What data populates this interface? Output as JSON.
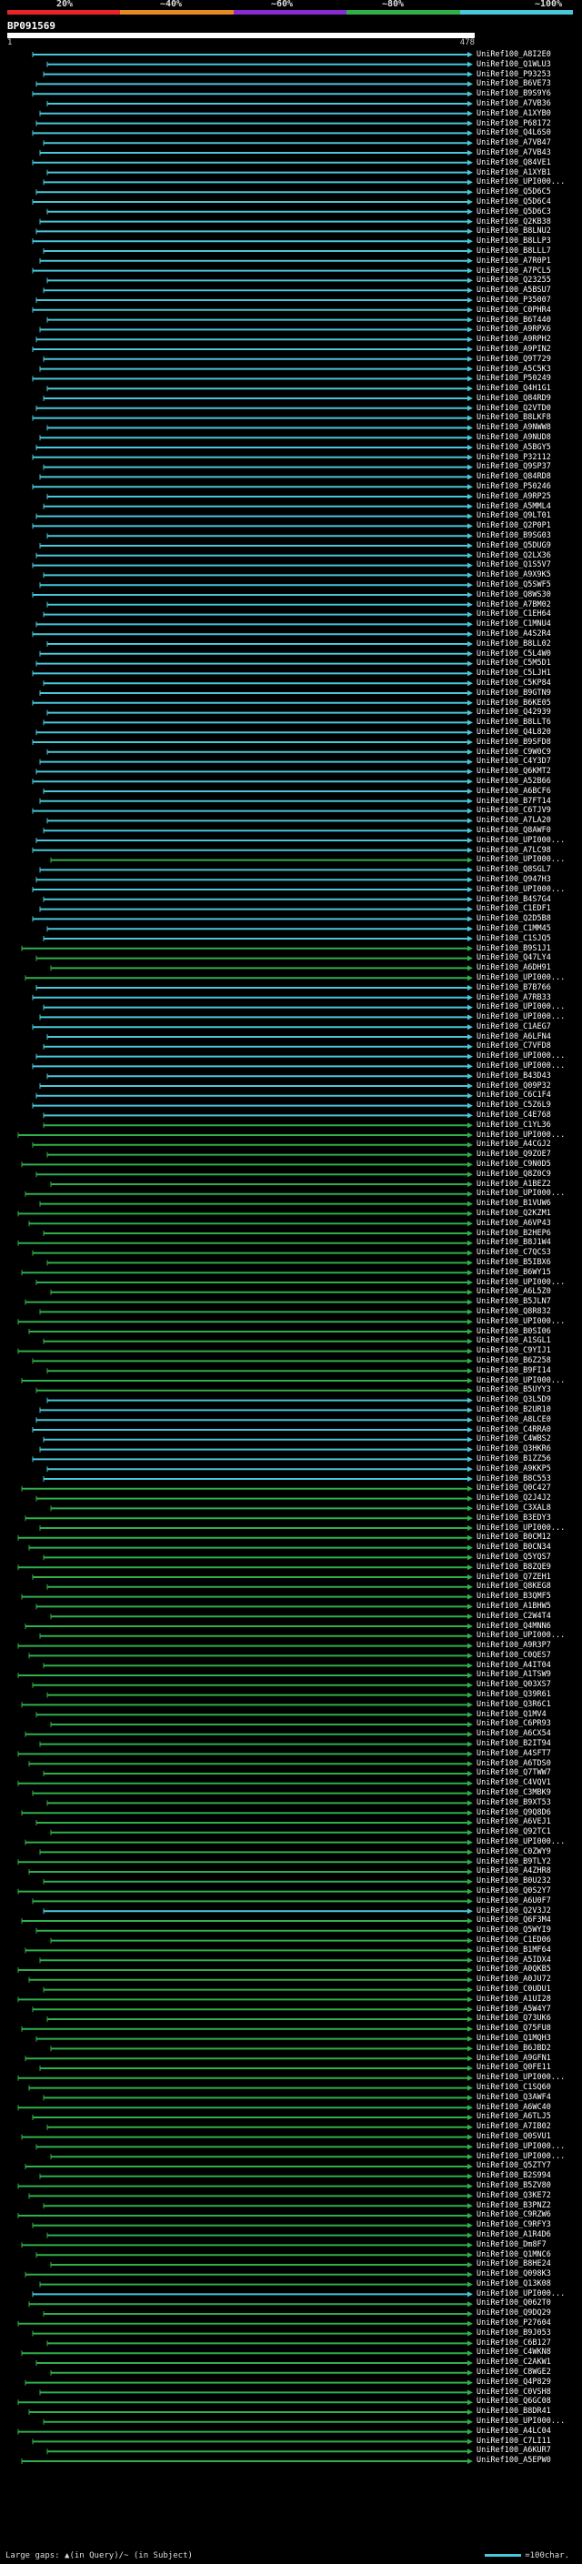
{
  "legend": {
    "percentages": [
      "20%",
      "~40%",
      "~60%",
      "~80%",
      "~100%"
    ],
    "colors": [
      "#e8232a",
      "#e88a22",
      "#8a2bd1",
      "#2fb04a",
      "#48c8d8"
    ]
  },
  "query": {
    "name": "BP091569",
    "start": "1",
    "end": "478"
  },
  "hits": [
    {
      "label": "UniRef100_A8I2E0",
      "color": "#48c8d8"
    },
    {
      "label": "UniRef100_Q1WLU3",
      "color": "#48c8d8"
    },
    {
      "label": "UniRef100_P93253",
      "color": "#48c8d8"
    },
    {
      "label": "UniRef100_B6VE73",
      "color": "#48c8d8"
    },
    {
      "label": "UniRef100_B9S9Y6",
      "color": "#48c8d8"
    },
    {
      "label": "UniRef100_A7VB36",
      "color": "#48c8d8"
    },
    {
      "label": "UniRef100_A1XYB0",
      "color": "#48c8d8"
    },
    {
      "label": "UniRef100_P68172",
      "color": "#48c8d8"
    },
    {
      "label": "UniRef100_Q4L6S0",
      "color": "#48c8d8"
    },
    {
      "label": "UniRef100_A7VB47",
      "color": "#48c8d8"
    },
    {
      "label": "UniRef100_A7VB43",
      "color": "#48c8d8"
    },
    {
      "label": "UniRef100_Q84VE1",
      "color": "#48c8d8"
    },
    {
      "label": "UniRef100_A1XYB1",
      "color": "#48c8d8"
    },
    {
      "label": "UniRef100_UPI000...",
      "color": "#48c8d8"
    },
    {
      "label": "UniRef100_Q5D6C5",
      "color": "#48c8d8"
    },
    {
      "label": "UniRef100_Q5D6C4",
      "color": "#48c8d8"
    },
    {
      "label": "UniRef100_Q5D6C3",
      "color": "#48c8d8"
    },
    {
      "label": "UniRef100_Q2KB38",
      "color": "#48c8d8"
    },
    {
      "label": "UniRef100_B8LNU2",
      "color": "#48c8d8"
    },
    {
      "label": "UniRef100_B8LLP3",
      "color": "#48c8d8"
    },
    {
      "label": "UniRef100_B8LLL7",
      "color": "#48c8d8"
    },
    {
      "label": "UniRef100_A7R0P1",
      "color": "#48c8d8"
    },
    {
      "label": "UniRef100_A7PCL5",
      "color": "#48c8d8"
    },
    {
      "label": "UniRef100_Q23255",
      "color": "#48c8d8"
    },
    {
      "label": "UniRef100_A5BSU7",
      "color": "#48c8d8"
    },
    {
      "label": "UniRef100_P35007",
      "color": "#48c8d8"
    },
    {
      "label": "UniRef100_C0PHR4",
      "color": "#48c8d8"
    },
    {
      "label": "UniRef100_B6T440",
      "color": "#48c8d8"
    },
    {
      "label": "UniRef100_A9RPX6",
      "color": "#48c8d8"
    },
    {
      "label": "UniRef100_A9RPH2",
      "color": "#48c8d8"
    },
    {
      "label": "UniRef100_A9PIN2",
      "color": "#48c8d8"
    },
    {
      "label": "UniRef100_Q9T729",
      "color": "#48c8d8"
    },
    {
      "label": "UniRef100_A5C5K3",
      "color": "#48c8d8"
    },
    {
      "label": "UniRef100_P50249",
      "color": "#48c8d8"
    },
    {
      "label": "UniRef100_Q4H1G1",
      "color": "#48c8d8"
    },
    {
      "label": "UniRef100_Q84RD9",
      "color": "#48c8d8"
    },
    {
      "label": "UniRef100_Q2VTD0",
      "color": "#48c8d8"
    },
    {
      "label": "UniRef100_B8LKF8",
      "color": "#48c8d8"
    },
    {
      "label": "UniRef100_A9NWW8",
      "color": "#48c8d8"
    },
    {
      "label": "UniRef100_A9NUD8",
      "color": "#48c8d8"
    },
    {
      "label": "UniRef100_A5BGY5",
      "color": "#48c8d8"
    },
    {
      "label": "UniRef100_P32112",
      "color": "#48c8d8"
    },
    {
      "label": "UniRef100_Q9SP37",
      "color": "#48c8d8"
    },
    {
      "label": "UniRef100_Q84RD8",
      "color": "#48c8d8"
    },
    {
      "label": "UniRef100_P50246",
      "color": "#48c8d8"
    },
    {
      "label": "UniRef100_A9RP25",
      "color": "#48c8d8"
    },
    {
      "label": "UniRef100_A5MML4",
      "color": "#48c8d8"
    },
    {
      "label": "UniRef100_Q9LT01",
      "color": "#48c8d8"
    },
    {
      "label": "UniRef100_Q2P0P1",
      "color": "#48c8d8"
    },
    {
      "label": "UniRef100_B9SG03",
      "color": "#48c8d8"
    },
    {
      "label": "UniRef100_Q5DUG9",
      "color": "#48c8d8"
    },
    {
      "label": "UniRef100_Q2LX36",
      "color": "#48c8d8"
    },
    {
      "label": "UniRef100_Q1S5V7",
      "color": "#48c8d8"
    },
    {
      "label": "UniRef100_A9X9K5",
      "color": "#48c8d8"
    },
    {
      "label": "UniRef100_Q5SWF5",
      "color": "#48c8d8"
    },
    {
      "label": "UniRef100_Q8WS30",
      "color": "#48c8d8"
    },
    {
      "label": "UniRef100_A7BM02",
      "color": "#48c8d8"
    },
    {
      "label": "UniRef100_C1EH64",
      "color": "#48c8d8"
    },
    {
      "label": "UniRef100_C1MNU4",
      "color": "#48c8d8"
    },
    {
      "label": "UniRef100_A4S2R4",
      "color": "#48c8d8"
    },
    {
      "label": "UniRef100_B8LL02",
      "color": "#48c8d8"
    },
    {
      "label": "UniRef100_C5L4W0",
      "color": "#48c8d8"
    },
    {
      "label": "UniRef100_C5M5D1",
      "color": "#48c8d8"
    },
    {
      "label": "UniRef100_C5LJH1",
      "color": "#48c8d8"
    },
    {
      "label": "UniRef100_C5KP84",
      "color": "#48c8d8"
    },
    {
      "label": "UniRef100_B9GTN9",
      "color": "#48c8d8"
    },
    {
      "label": "UniRef100_B6KE05",
      "color": "#48c8d8"
    },
    {
      "label": "UniRef100_Q42939",
      "color": "#48c8d8"
    },
    {
      "label": "UniRef100_B8LLT6",
      "color": "#48c8d8"
    },
    {
      "label": "UniRef100_Q4L820",
      "color": "#48c8d8"
    },
    {
      "label": "UniRef100_B9SFD8",
      "color": "#48c8d8"
    },
    {
      "label": "UniRef100_C9W0C9",
      "color": "#48c8d8"
    },
    {
      "label": "UniRef100_C4Y3D7",
      "color": "#48c8d8"
    },
    {
      "label": "UniRef100_Q6KMT2",
      "color": "#48c8d8"
    },
    {
      "label": "UniRef100_A52B66",
      "color": "#48c8d8"
    },
    {
      "label": "UniRef100_A6BCF6",
      "color": "#48c8d8"
    },
    {
      "label": "UniRef100_B7FT14",
      "color": "#48c8d8"
    },
    {
      "label": "UniRef100_C6TJV9",
      "color": "#48c8d8"
    },
    {
      "label": "UniRef100_A7LA20",
      "color": "#48c8d8"
    },
    {
      "label": "UniRef100_Q8AWF0",
      "color": "#48c8d8"
    },
    {
      "label": "UniRef100_UPI000...",
      "color": "#48c8d8"
    },
    {
      "label": "UniRef100_A7LC98",
      "color": "#48c8d8"
    },
    {
      "label": "UniRef100_UPI000...",
      "color": "#2fb04a"
    },
    {
      "label": "UniRef100_Q8SGL7",
      "color": "#48c8d8"
    },
    {
      "label": "UniRef100_Q947H3",
      "color": "#48c8d8"
    },
    {
      "label": "UniRef100_UPI000...",
      "color": "#48c8d8"
    },
    {
      "label": "UniRef100_B4S7G4",
      "color": "#48c8d8"
    },
    {
      "label": "UniRef100_C1EDF1",
      "color": "#48c8d8"
    },
    {
      "label": "UniRef100_Q2D5B8",
      "color": "#48c8d8"
    },
    {
      "label": "UniRef100_C1MM45",
      "color": "#48c8d8"
    },
    {
      "label": "UniRef100_C1SJQ5",
      "color": "#48c8d8"
    },
    {
      "label": "UniRef100_B9S1J1",
      "color": "#2fb04a"
    },
    {
      "label": "UniRef100_Q47LY4",
      "color": "#2fb04a"
    },
    {
      "label": "UniRef100_A6DH91",
      "color": "#2fb04a"
    },
    {
      "label": "UniRef100_UPI000...",
      "color": "#2fb04a"
    },
    {
      "label": "UniRef100_B7B766",
      "color": "#48c8d8"
    },
    {
      "label": "UniRef100_A7RB33",
      "color": "#48c8d8"
    },
    {
      "label": "UniRef100_UPI000...",
      "color": "#48c8d8"
    },
    {
      "label": "UniRef100_UPI000...",
      "color": "#48c8d8"
    },
    {
      "label": "UniRef100_C1AEG7",
      "color": "#48c8d8"
    },
    {
      "label": "UniRef100_A6LFN4",
      "color": "#48c8d8"
    },
    {
      "label": "UniRef100_C7VFD8",
      "color": "#48c8d8"
    },
    {
      "label": "UniRef100_UPI000...",
      "color": "#48c8d8"
    },
    {
      "label": "UniRef100_UPI000...",
      "color": "#48c8d8"
    },
    {
      "label": "UniRef100_B43D43",
      "color": "#48c8d8"
    },
    {
      "label": "UniRef100_Q09P32",
      "color": "#48c8d8"
    },
    {
      "label": "UniRef100_C6C1F4",
      "color": "#48c8d8"
    },
    {
      "label": "UniRef100_C5Z6L9",
      "color": "#48c8d8"
    },
    {
      "label": "UniRef100_C4E768",
      "color": "#48c8d8"
    },
    {
      "label": "UniRef100_C1YL36",
      "color": "#2fb04a"
    },
    {
      "label": "UniRef100_UPI000...",
      "color": "#2fb04a"
    },
    {
      "label": "UniRef100_A4CGJ2",
      "color": "#2fb04a"
    },
    {
      "label": "UniRef100_Q9ZOE7",
      "color": "#2fb04a"
    },
    {
      "label": "UniRef100_C9N0D5",
      "color": "#2fb04a"
    },
    {
      "label": "UniRef100_Q8Z0C9",
      "color": "#2fb04a"
    },
    {
      "label": "UniRef100_A1BEZ2",
      "color": "#2fb04a"
    },
    {
      "label": "UniRef100_UPI000...",
      "color": "#2fb04a"
    },
    {
      "label": "UniRef100_B1VUW6",
      "color": "#2fb04a"
    },
    {
      "label": "UniRef100_Q2KZM1",
      "color": "#2fb04a"
    },
    {
      "label": "UniRef100_A6VP43",
      "color": "#2fb04a"
    },
    {
      "label": "UniRef100_B2HEP6",
      "color": "#2fb04a"
    },
    {
      "label": "UniRef100_B8J1W4",
      "color": "#2fb04a"
    },
    {
      "label": "UniRef100_C7QCS3",
      "color": "#2fb04a"
    },
    {
      "label": "UniRef100_B5IBX6",
      "color": "#2fb04a"
    },
    {
      "label": "UniRef100_B6WY15",
      "color": "#2fb04a"
    },
    {
      "label": "UniRef100_UPI000...",
      "color": "#2fb04a"
    },
    {
      "label": "UniRef100_A6L5Z0",
      "color": "#2fb04a"
    },
    {
      "label": "UniRef100_B5JLN7",
      "color": "#2fb04a"
    },
    {
      "label": "UniRef100_Q8R832",
      "color": "#2fb04a"
    },
    {
      "label": "UniRef100_UPI000...",
      "color": "#2fb04a"
    },
    {
      "label": "UniRef100_B0SI06",
      "color": "#2fb04a"
    },
    {
      "label": "UniRef100_A1SGL1",
      "color": "#2fb04a"
    },
    {
      "label": "UniRef100_C9YIJ1",
      "color": "#2fb04a"
    },
    {
      "label": "UniRef100_B6Z258",
      "color": "#2fb04a"
    },
    {
      "label": "UniRef100_B9FI14",
      "color": "#2fb04a"
    },
    {
      "label": "UniRef100_UPI000...",
      "color": "#2fb04a"
    },
    {
      "label": "UniRef100_B5UYY3",
      "color": "#2fb04a"
    },
    {
      "label": "UniRef100_Q3L5D9",
      "color": "#48c8d8"
    },
    {
      "label": "UniRef100_B2UR10",
      "color": "#48c8d8"
    },
    {
      "label": "UniRef100_A8LCE0",
      "color": "#48c8d8"
    },
    {
      "label": "UniRef100_C4RRA0",
      "color": "#48c8d8"
    },
    {
      "label": "UniRef100_C4WBS2",
      "color": "#48c8d8"
    },
    {
      "label": "UniRef100_Q3HKR6",
      "color": "#48c8d8"
    },
    {
      "label": "UniRef100_B1ZZ56",
      "color": "#48c8d8"
    },
    {
      "label": "UniRef100_A9KKP5",
      "color": "#48c8d8"
    },
    {
      "label": "UniRef100_B8C553",
      "color": "#48c8d8"
    },
    {
      "label": "UniRef100_Q0C427",
      "color": "#2fb04a"
    },
    {
      "label": "UniRef100_Q2J4J2",
      "color": "#2fb04a"
    },
    {
      "label": "UniRef100_C3XAL8",
      "color": "#2fb04a"
    },
    {
      "label": "UniRef100_B3EDY3",
      "color": "#2fb04a"
    },
    {
      "label": "UniRef100_UPI000...",
      "color": "#2fb04a"
    },
    {
      "label": "UniRef100_B0CM12",
      "color": "#2fb04a"
    },
    {
      "label": "UniRef100_B0CN34",
      "color": "#2fb04a"
    },
    {
      "label": "UniRef100_Q5YQS7",
      "color": "#2fb04a"
    },
    {
      "label": "UniRef100_B8ZQE9",
      "color": "#2fb04a"
    },
    {
      "label": "UniRef100_Q7ZEH1",
      "color": "#2fb04a"
    },
    {
      "label": "UniRef100_Q8KEG8",
      "color": "#2fb04a"
    },
    {
      "label": "UniRef100_B3QMF5",
      "color": "#2fb04a"
    },
    {
      "label": "UniRef100_A1BHW5",
      "color": "#2fb04a"
    },
    {
      "label": "UniRef100_C2W4T4",
      "color": "#2fb04a"
    },
    {
      "label": "UniRef100_Q4MNN6",
      "color": "#2fb04a"
    },
    {
      "label": "UniRef100_UPI000...",
      "color": "#2fb04a"
    },
    {
      "label": "UniRef100_A9R3P7",
      "color": "#2fb04a"
    },
    {
      "label": "UniRef100_C0QES7",
      "color": "#2fb04a"
    },
    {
      "label": "UniRef100_A4IT04",
      "color": "#2fb04a"
    },
    {
      "label": "UniRef100_A1TSW9",
      "color": "#2fb04a"
    },
    {
      "label": "UniRef100_Q03XS7",
      "color": "#2fb04a"
    },
    {
      "label": "UniRef100_Q39R61",
      "color": "#2fb04a"
    },
    {
      "label": "UniRef100_Q3R6C1",
      "color": "#2fb04a"
    },
    {
      "label": "UniRef100_Q1MV4",
      "color": "#2fb04a"
    },
    {
      "label": "UniRef100_C6PR93",
      "color": "#2fb04a"
    },
    {
      "label": "UniRef100_A6CX54",
      "color": "#2fb04a"
    },
    {
      "label": "UniRef100_B2IT94",
      "color": "#2fb04a"
    },
    {
      "label": "UniRef100_A4SFT7",
      "color": "#2fb04a"
    },
    {
      "label": "UniRef100_A6TDS0",
      "color": "#2fb04a"
    },
    {
      "label": "UniRef100_Q7TWW7",
      "color": "#2fb04a"
    },
    {
      "label": "UniRef100_C4VQV1",
      "color": "#2fb04a"
    },
    {
      "label": "UniRef100_C3MBK9",
      "color": "#2fb04a"
    },
    {
      "label": "UniRef100_B9XT53",
      "color": "#2fb04a"
    },
    {
      "label": "UniRef100_Q9Q8D6",
      "color": "#2fb04a"
    },
    {
      "label": "UniRef100_A6VEJ1",
      "color": "#2fb04a"
    },
    {
      "label": "UniRef100_Q92TC1",
      "color": "#2fb04a"
    },
    {
      "label": "UniRef100_UPI000...",
      "color": "#2fb04a"
    },
    {
      "label": "UniRef100_C0ZWY9",
      "color": "#2fb04a"
    },
    {
      "label": "UniRef100_B9TLY2",
      "color": "#2fb04a"
    },
    {
      "label": "UniRef100_A4ZHR8",
      "color": "#2fb04a"
    },
    {
      "label": "UniRef100_B0U232",
      "color": "#2fb04a"
    },
    {
      "label": "UniRef100_Q0S2Y7",
      "color": "#2fb04a"
    },
    {
      "label": "UniRef100_A6U0F7",
      "color": "#2fb04a"
    },
    {
      "label": "UniRef100_Q2V3J2",
      "color": "#48c8d8"
    },
    {
      "label": "UniRef100_Q6F3M4",
      "color": "#2fb04a"
    },
    {
      "label": "UniRef100_Q5WYI9",
      "color": "#2fb04a"
    },
    {
      "label": "UniRef100_C1ED06",
      "color": "#2fb04a"
    },
    {
      "label": "UniRef100_B1MF64",
      "color": "#2fb04a"
    },
    {
      "label": "UniRef100_A5IDX4",
      "color": "#2fb04a"
    },
    {
      "label": "UniRef100_A0QKB5",
      "color": "#2fb04a"
    },
    {
      "label": "UniRef100_A0JU72",
      "color": "#2fb04a"
    },
    {
      "label": "UniRef100_C0UDU1",
      "color": "#2fb04a"
    },
    {
      "label": "UniRef100_A1UI28",
      "color": "#2fb04a"
    },
    {
      "label": "UniRef100_A5W4Y7",
      "color": "#2fb04a"
    },
    {
      "label": "UniRef100_Q73UK6",
      "color": "#2fb04a"
    },
    {
      "label": "UniRef100_Q75FU8",
      "color": "#2fb04a"
    },
    {
      "label": "UniRef100_Q1MQH3",
      "color": "#2fb04a"
    },
    {
      "label": "UniRef100_B6JBD2",
      "color": "#2fb04a"
    },
    {
      "label": "UniRef100_A9GFN1",
      "color": "#2fb04a"
    },
    {
      "label": "UniRef100_Q0FE11",
      "color": "#2fb04a"
    },
    {
      "label": "UniRef100_UPI000...",
      "color": "#2fb04a"
    },
    {
      "label": "UniRef100_C1SQ60",
      "color": "#2fb04a"
    },
    {
      "label": "UniRef100_Q3AWF4",
      "color": "#2fb04a"
    },
    {
      "label": "UniRef100_A6WC40",
      "color": "#2fb04a"
    },
    {
      "label": "UniRef100_A6TLJ5",
      "color": "#2fb04a"
    },
    {
      "label": "UniRef100_A7IB02",
      "color": "#2fb04a"
    },
    {
      "label": "UniRef100_Q0SVU1",
      "color": "#2fb04a"
    },
    {
      "label": "UniRef100_UPI000...",
      "color": "#2fb04a"
    },
    {
      "label": "UniRef100_UPI000...",
      "color": "#2fb04a"
    },
    {
      "label": "UniRef100_Q5ZTY7",
      "color": "#2fb04a"
    },
    {
      "label": "UniRef100_B2S994",
      "color": "#2fb04a"
    },
    {
      "label": "UniRef100_B5ZV80",
      "color": "#2fb04a"
    },
    {
      "label": "UniRef100_Q3KE72",
      "color": "#2fb04a"
    },
    {
      "label": "UniRef100_B3PNZ2",
      "color": "#2fb04a"
    },
    {
      "label": "UniRef100_C9RZW6",
      "color": "#2fb04a"
    },
    {
      "label": "UniRef100_C9RFY3",
      "color": "#2fb04a"
    },
    {
      "label": "UniRef100_A1R4D6",
      "color": "#2fb04a"
    },
    {
      "label": "UniRef100_Dm8F7",
      "color": "#2fb04a"
    },
    {
      "label": "UniRef100_Q1MNC6",
      "color": "#2fb04a"
    },
    {
      "label": "UniRef100_B8HE24",
      "color": "#2fb04a"
    },
    {
      "label": "UniRef100_Q098K3",
      "color": "#2fb04a"
    },
    {
      "label": "UniRef100_Q13K08",
      "color": "#2fb04a"
    },
    {
      "label": "UniRef100_UPI000...",
      "color": "#48c8d8"
    },
    {
      "label": "UniRef100_Q062T0",
      "color": "#2fb04a"
    },
    {
      "label": "UniRef100_Q9DQ29",
      "color": "#2fb04a"
    },
    {
      "label": "UniRef100_P27604",
      "color": "#2fb04a"
    },
    {
      "label": "UniRef100_B9J053",
      "color": "#2fb04a"
    },
    {
      "label": "UniRef100_C6B127",
      "color": "#2fb04a"
    },
    {
      "label": "UniRef100_C4WKN8",
      "color": "#2fb04a"
    },
    {
      "label": "UniRef100_C2AKW1",
      "color": "#2fb04a"
    },
    {
      "label": "UniRef100_C8WGE2",
      "color": "#2fb04a"
    },
    {
      "label": "UniRef100_Q4P829",
      "color": "#2fb04a"
    },
    {
      "label": "UniRef100_C0VSH8",
      "color": "#2fb04a"
    },
    {
      "label": "UniRef100_Q6GC08",
      "color": "#2fb04a"
    },
    {
      "label": "UniRef100_B8DR41",
      "color": "#2fb04a"
    },
    {
      "label": "UniRef100_UPI000...",
      "color": "#2fb04a"
    },
    {
      "label": "UniRef100_A4LC04",
      "color": "#2fb04a"
    },
    {
      "label": "UniRef100_C7LI11",
      "color": "#2fb04a"
    },
    {
      "label": "UniRef100_A6KUR7",
      "color": "#2fb04a"
    },
    {
      "label": "UniRef100_A5EPW0",
      "color": "#2fb04a"
    }
  ],
  "footer": {
    "gaps_text": "Large gaps: ▲(in Query)/~ (in Subject)",
    "scale_text": "=100char."
  }
}
